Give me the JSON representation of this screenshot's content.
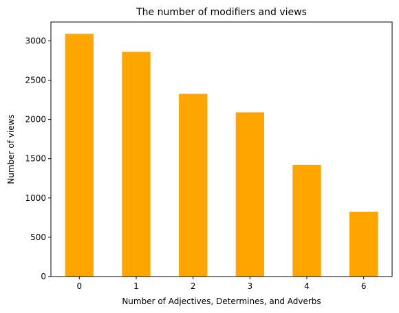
{
  "chart_data": {
    "type": "bar",
    "title": "The number of modifiers and views",
    "xlabel": "Number of Adjectives, Determines, and Adverbs",
    "ylabel": "Number of views",
    "categories": [
      "0",
      "1",
      "2",
      "3",
      "4",
      "6"
    ],
    "values": [
      3090,
      2860,
      2325,
      2090,
      1420,
      825
    ],
    "ylim": [
      0,
      3240
    ],
    "yticks": [
      0,
      500,
      1000,
      1500,
      2000,
      2500,
      3000
    ],
    "bar_color": "#ffa500",
    "grid": false,
    "legend": "none"
  }
}
